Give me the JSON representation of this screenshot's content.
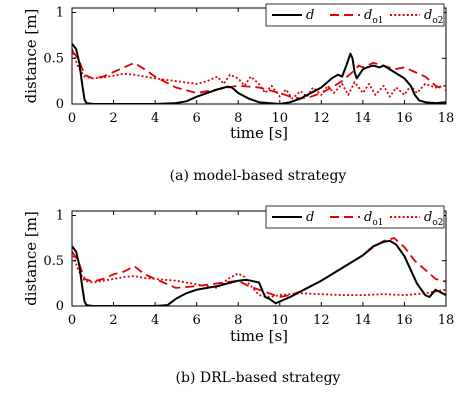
{
  "chart_data": [
    {
      "type": "line",
      "caption": "(a) model-based strategy",
      "xlabel": "time [s]",
      "ylabel": "distance [m]",
      "xlim": [
        0,
        18
      ],
      "ylim": [
        0,
        1.05
      ],
      "xticks": [
        "0",
        "2",
        "4",
        "6",
        "8",
        "10",
        "12",
        "14",
        "16",
        "18"
      ],
      "yticks": [
        "0",
        "0.5",
        "1"
      ],
      "legend_position": "top-right",
      "legend": [
        {
          "main": "d",
          "sub": ""
        },
        {
          "main": "d",
          "sub": "o1"
        },
        {
          "main": "d",
          "sub": "o2"
        }
      ],
      "series": [
        {
          "name": "d",
          "color": "#000000",
          "style": "solid",
          "x": [
            0,
            0.2,
            0.35,
            0.5,
            0.6,
            0.7,
            1,
            2,
            3,
            4,
            5,
            5.5,
            6,
            6.5,
            7,
            7.5,
            7.7,
            8,
            8.5,
            9,
            9.5,
            10,
            10.5,
            11,
            11.5,
            12,
            12.2,
            12.5,
            12.8,
            13,
            13.2,
            13.4,
            13.5,
            13.6,
            13.7,
            14,
            14.2,
            14.5,
            14.8,
            15,
            15.5,
            16,
            16.3,
            16.5,
            16.7,
            17,
            17.5,
            18
          ],
          "y": [
            0.66,
            0.6,
            0.45,
            0.2,
            0.05,
            0.01,
            0.0,
            0.0,
            0.0,
            0.0,
            0.01,
            0.03,
            0.08,
            0.12,
            0.16,
            0.19,
            0.18,
            0.12,
            0.06,
            0.02,
            0.01,
            0.0,
            0.02,
            0.06,
            0.12,
            0.18,
            0.22,
            0.28,
            0.32,
            0.3,
            0.42,
            0.55,
            0.5,
            0.35,
            0.28,
            0.38,
            0.4,
            0.42,
            0.4,
            0.42,
            0.35,
            0.28,
            0.2,
            0.1,
            0.04,
            0.02,
            0.01,
            0.02
          ]
        },
        {
          "name": "do1",
          "color": "#e00000",
          "style": "dashed",
          "x": [
            0,
            0.3,
            0.6,
            1,
            1.5,
            2,
            2.5,
            3,
            3.5,
            4,
            4.5,
            5,
            6,
            7,
            8,
            9,
            10,
            10.5,
            11,
            11.5,
            12,
            12.5,
            13,
            13.5,
            13.8,
            14,
            14.5,
            15,
            15.5,
            16,
            16.5,
            17,
            17.5,
            18
          ],
          "y": [
            0.58,
            0.5,
            0.32,
            0.28,
            0.3,
            0.35,
            0.4,
            0.45,
            0.38,
            0.3,
            0.24,
            0.18,
            0.12,
            0.16,
            0.2,
            0.18,
            0.12,
            0.08,
            0.06,
            0.08,
            0.12,
            0.18,
            0.25,
            0.35,
            0.42,
            0.4,
            0.45,
            0.42,
            0.38,
            0.4,
            0.35,
            0.3,
            0.2,
            0.15
          ]
        },
        {
          "name": "do2",
          "color": "#e00000",
          "style": "dotted",
          "x": [
            0,
            0.3,
            0.6,
            1,
            1.5,
            2,
            2.5,
            3,
            3.5,
            4,
            5,
            6,
            6.5,
            7,
            7.3,
            7.6,
            8,
            8.3,
            8.6,
            9,
            9.3,
            9.6,
            10,
            10.3,
            10.6,
            11,
            11.3,
            11.6,
            12,
            12.3,
            12.6,
            13,
            13.3,
            13.6,
            14,
            14.3,
            14.6,
            15,
            15.3,
            15.6,
            16,
            16.3,
            16.6,
            17,
            17.5,
            18
          ],
          "y": [
            0.6,
            0.4,
            0.3,
            0.28,
            0.29,
            0.31,
            0.33,
            0.32,
            0.3,
            0.28,
            0.25,
            0.22,
            0.25,
            0.3,
            0.22,
            0.32,
            0.28,
            0.2,
            0.3,
            0.22,
            0.12,
            0.2,
            0.08,
            0.16,
            0.06,
            0.14,
            0.08,
            0.18,
            0.1,
            0.2,
            0.12,
            0.22,
            0.1,
            0.24,
            0.12,
            0.22,
            0.1,
            0.2,
            0.08,
            0.18,
            0.1,
            0.2,
            0.12,
            0.22,
            0.18,
            0.2
          ]
        }
      ]
    },
    {
      "type": "line",
      "caption": "(b) DRL-based strategy",
      "xlabel": "time [s]",
      "ylabel": "distance [m]",
      "xlim": [
        0,
        18
      ],
      "ylim": [
        0,
        1.05
      ],
      "xticks": [
        "0",
        "2",
        "4",
        "6",
        "8",
        "10",
        "12",
        "14",
        "16",
        "18"
      ],
      "yticks": [
        "0",
        "0.5",
        "1"
      ],
      "legend_position": "top-right",
      "legend": [
        {
          "main": "d",
          "sub": ""
        },
        {
          "main": "d",
          "sub": "o1"
        },
        {
          "main": "d",
          "sub": "o2"
        }
      ],
      "series": [
        {
          "name": "d",
          "color": "#000000",
          "style": "solid",
          "x": [
            0,
            0.2,
            0.35,
            0.5,
            0.6,
            0.7,
            1,
            2,
            3,
            4,
            4.6,
            5,
            5.5,
            6,
            6.5,
            7,
            7.5,
            8,
            8.4,
            8.6,
            9,
            9.3,
            9.5,
            9.8,
            10,
            10.5,
            11,
            12,
            13,
            14,
            14.5,
            15,
            15.3,
            15.6,
            16,
            16.3,
            16.6,
            17,
            17.2,
            17.5,
            18
          ],
          "y": [
            0.66,
            0.6,
            0.45,
            0.2,
            0.05,
            0.01,
            0.0,
            0.0,
            0.0,
            0.0,
            0.01,
            0.08,
            0.14,
            0.18,
            0.2,
            0.22,
            0.25,
            0.28,
            0.29,
            0.28,
            0.26,
            0.1,
            0.08,
            0.03,
            0.05,
            0.1,
            0.16,
            0.28,
            0.42,
            0.56,
            0.66,
            0.71,
            0.72,
            0.68,
            0.55,
            0.4,
            0.25,
            0.12,
            0.1,
            0.18,
            0.12
          ]
        },
        {
          "name": "do1",
          "color": "#e00000",
          "style": "dashed",
          "x": [
            0,
            0.3,
            0.6,
            1,
            1.5,
            2,
            2.5,
            3,
            3.5,
            4,
            4.5,
            5,
            6,
            7,
            8,
            8.5,
            9,
            9.5,
            10,
            10.5,
            11,
            12,
            13,
            14,
            14.5,
            15,
            15.5,
            16,
            16.5,
            17,
            17.5,
            18
          ],
          "y": [
            0.6,
            0.5,
            0.3,
            0.27,
            0.3,
            0.35,
            0.38,
            0.44,
            0.35,
            0.3,
            0.25,
            0.2,
            0.22,
            0.25,
            0.28,
            0.22,
            0.18,
            0.14,
            0.1,
            0.12,
            0.16,
            0.28,
            0.42,
            0.56,
            0.65,
            0.72,
            0.75,
            0.65,
            0.5,
            0.4,
            0.3,
            0.27
          ]
        },
        {
          "name": "do2",
          "color": "#e00000",
          "style": "dotted",
          "x": [
            0,
            0.3,
            0.6,
            1,
            1.5,
            2,
            2.5,
            3,
            3.5,
            4,
            5,
            6,
            7,
            7.5,
            8,
            8.3,
            8.5,
            9,
            9.5,
            10,
            11,
            12,
            13,
            14,
            15,
            16,
            16.5,
            17,
            17.5,
            18
          ],
          "y": [
            0.6,
            0.4,
            0.28,
            0.26,
            0.28,
            0.3,
            0.32,
            0.33,
            0.31,
            0.3,
            0.28,
            0.24,
            0.2,
            0.3,
            0.36,
            0.32,
            0.25,
            0.12,
            0.1,
            0.12,
            0.14,
            0.13,
            0.12,
            0.12,
            0.13,
            0.12,
            0.13,
            0.14,
            0.16,
            0.18
          ]
        }
      ]
    }
  ]
}
